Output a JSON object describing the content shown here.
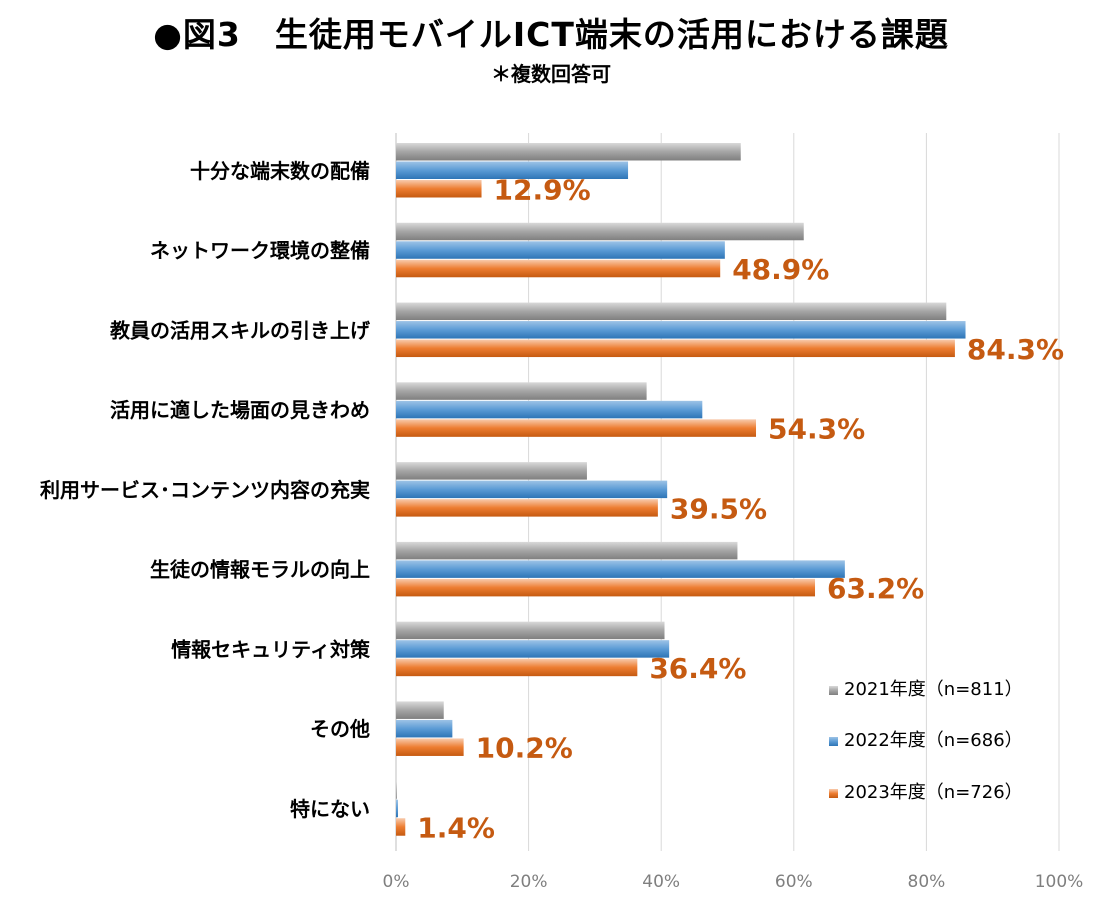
{
  "title": "●図3　生徒用モバイルICT端末の活用における課題",
  "subtitle": "＊複数回答可",
  "chart_data": {
    "type": "bar",
    "orientation": "horizontal",
    "title": "●図3　生徒用モバイルICT端末の活用における課題",
    "subtitle": "＊複数回答可",
    "categories": [
      "十分な端末数の配備",
      "ネットワーク環境の整備",
      "教員の活用スキルの引き上げ",
      "活用に適した場面の見きわめ",
      "利用サービス･コンテンツ内容の充実",
      "生徒の情報モラルの向上",
      "情報セキュリティ対策",
      "その他",
      "特にない"
    ],
    "series": [
      {
        "name": "2021年度（n=811）",
        "color": "#a5a5a5",
        "values": [
          52.0,
          61.5,
          83.0,
          37.8,
          28.8,
          51.5,
          40.5,
          7.2,
          0.1
        ]
      },
      {
        "name": "2022年度（n=686）",
        "color": "#5b9bd5",
        "values": [
          35.0,
          49.6,
          85.9,
          46.2,
          40.9,
          67.7,
          41.2,
          8.5,
          0.3
        ]
      },
      {
        "name": "2023年度（n=726）",
        "color": "#ed7d31",
        "values": [
          12.9,
          48.9,
          84.3,
          54.3,
          39.5,
          63.2,
          36.4,
          10.2,
          1.4
        ]
      }
    ],
    "data_labels": [
      "12.9%",
      "48.9%",
      "84.3%",
      "54.3%",
      "39.5%",
      "63.2%",
      "36.4%",
      "10.2%",
      "1.4%"
    ],
    "xticks": [
      "0%",
      "20%",
      "40%",
      "60%",
      "80%",
      "100%"
    ],
    "xlim": [
      0,
      100
    ],
    "grid": true,
    "legend": "bottom-right"
  }
}
